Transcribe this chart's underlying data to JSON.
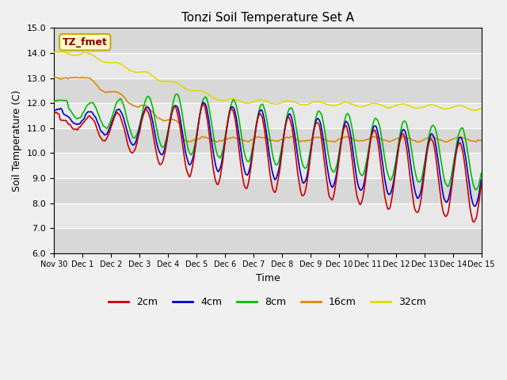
{
  "title": "Tonzi Soil Temperature Set A",
  "xlabel": "Time",
  "ylabel": "Soil Temperature (C)",
  "ylim": [
    6.0,
    15.0
  ],
  "yticks": [
    6.0,
    7.0,
    8.0,
    9.0,
    10.0,
    11.0,
    12.0,
    13.0,
    14.0,
    15.0
  ],
  "xtick_labels": [
    "Nov 30",
    "Dec 1",
    "Dec 2",
    "Dec 3",
    "Dec 4",
    "Dec 5",
    "Dec 6",
    "Dec 7",
    "Dec 8",
    "Dec 9",
    "Dec 10",
    "Dec 11",
    "Dec 12",
    "Dec 13",
    "Dec 14",
    "Dec 15"
  ],
  "colors": {
    "2cm": "#cc0000",
    "4cm": "#0000cc",
    "8cm": "#00bb00",
    "16cm": "#dd8800",
    "32cm": "#dddd00"
  },
  "annotation_text": "TZ_fmet",
  "annotation_bg": "#ffffcc",
  "annotation_border": "#ccaa00",
  "annotation_text_color": "#880000",
  "band_colors": [
    "#d8d8d8",
    "#e8e8e8"
  ],
  "fig_facecolor": "#f0f0f0"
}
